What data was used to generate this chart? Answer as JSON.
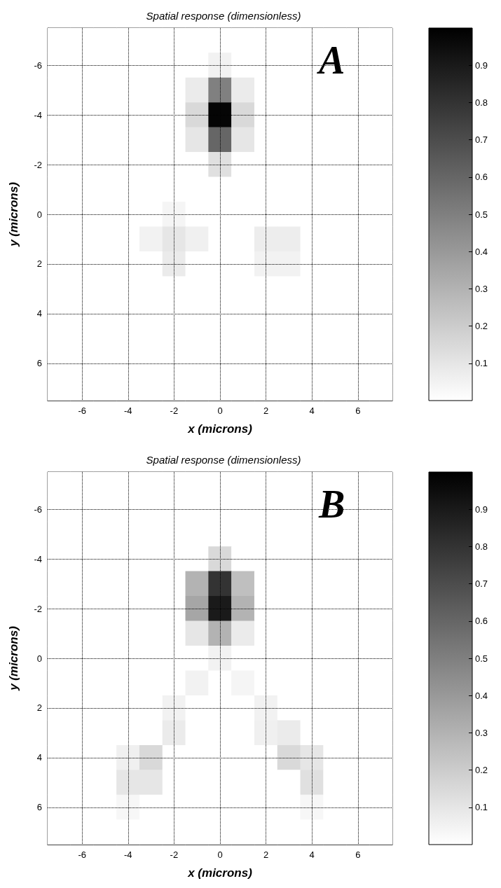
{
  "chart_data": [
    {
      "type": "heatmap",
      "title": "Spatial response (dimensionless)",
      "xlabel": "x (microns)",
      "ylabel": "y (microns)",
      "annotations": [
        "A"
      ],
      "grid": true,
      "categories": [
        null,
        "-6",
        null,
        "-4",
        null,
        "-2",
        null,
        "0",
        null,
        "2",
        null,
        "4",
        null,
        "6",
        null
      ],
      "y_categories": [
        null,
        "-6",
        null,
        "-4",
        null,
        "-2",
        null,
        "0",
        null,
        "2",
        null,
        "4",
        null,
        "6",
        null
      ],
      "clim": [
        0,
        1
      ],
      "cticks": [
        0.1,
        0.2,
        0.3,
        0.4,
        0.5,
        0.6,
        0.7,
        0.8,
        0.9
      ],
      "cells": [
        [
          0,
          0,
          0,
          0,
          0,
          0,
          0,
          0,
          0,
          0,
          0,
          0,
          0,
          0,
          0
        ],
        [
          0,
          0,
          0,
          0,
          0,
          0,
          0,
          0.05,
          0,
          0,
          0,
          0,
          0,
          0,
          0
        ],
        [
          0,
          0,
          0,
          0,
          0,
          0,
          0.08,
          0.5,
          0.08,
          0,
          0,
          0,
          0,
          0,
          0
        ],
        [
          0,
          0,
          0,
          0,
          0,
          0,
          0.15,
          0.98,
          0.15,
          0,
          0,
          0,
          0,
          0,
          0
        ],
        [
          0,
          0,
          0,
          0,
          0,
          0,
          0.1,
          0.6,
          0.1,
          0,
          0,
          0,
          0,
          0,
          0
        ],
        [
          0,
          0,
          0,
          0,
          0,
          0,
          0,
          0.12,
          0,
          0,
          0,
          0,
          0,
          0,
          0
        ],
        [
          0,
          0,
          0,
          0,
          0,
          0,
          0,
          0,
          0,
          0,
          0,
          0,
          0,
          0,
          0
        ],
        [
          0,
          0,
          0,
          0,
          0,
          0.04,
          0,
          0,
          0,
          0,
          0,
          0,
          0,
          0,
          0
        ],
        [
          0,
          0,
          0,
          0,
          0.05,
          0.1,
          0.06,
          0,
          0,
          0.07,
          0.07,
          0,
          0,
          0,
          0
        ],
        [
          0,
          0,
          0,
          0,
          0,
          0.08,
          0,
          0,
          0,
          0.05,
          0.05,
          0,
          0,
          0,
          0
        ],
        [
          0,
          0,
          0,
          0,
          0,
          0,
          0,
          0,
          0,
          0,
          0,
          0,
          0,
          0,
          0
        ],
        [
          0,
          0,
          0,
          0,
          0,
          0,
          0,
          0,
          0,
          0,
          0,
          0,
          0,
          0,
          0
        ],
        [
          0,
          0,
          0,
          0,
          0,
          0,
          0,
          0,
          0,
          0,
          0,
          0,
          0,
          0,
          0
        ],
        [
          0,
          0,
          0,
          0,
          0,
          0,
          0,
          0,
          0,
          0,
          0,
          0,
          0,
          0,
          0
        ],
        [
          0,
          0,
          0,
          0,
          0,
          0,
          0,
          0,
          0,
          0,
          0,
          0,
          0,
          0,
          0
        ]
      ]
    },
    {
      "type": "heatmap",
      "title": "Spatial response (dimensionless)",
      "xlabel": "x (microns)",
      "ylabel": "y (microns)",
      "annotations": [
        "B"
      ],
      "grid": true,
      "categories": [
        null,
        "-6",
        null,
        "-4",
        null,
        "-2",
        null,
        "0",
        null,
        "2",
        null,
        "4",
        null,
        "6",
        null
      ],
      "y_categories": [
        null,
        "-6",
        null,
        "-4",
        null,
        "-2",
        null,
        "0",
        null,
        "2",
        null,
        "4",
        null,
        "6",
        null
      ],
      "clim": [
        0,
        1
      ],
      "cticks": [
        0.1,
        0.2,
        0.3,
        0.4,
        0.5,
        0.6,
        0.7,
        0.8,
        0.9
      ],
      "cells": [
        [
          0,
          0,
          0,
          0,
          0,
          0,
          0,
          0,
          0,
          0,
          0,
          0,
          0,
          0,
          0
        ],
        [
          0,
          0,
          0,
          0,
          0,
          0,
          0,
          0,
          0,
          0,
          0,
          0,
          0,
          0,
          0
        ],
        [
          0,
          0,
          0,
          0,
          0,
          0,
          0,
          0,
          0,
          0,
          0,
          0,
          0,
          0,
          0
        ],
        [
          0,
          0,
          0,
          0,
          0,
          0,
          0,
          0.15,
          0,
          0,
          0,
          0,
          0,
          0,
          0
        ],
        [
          0,
          0,
          0,
          0,
          0,
          0,
          0.3,
          0.8,
          0.25,
          0,
          0,
          0,
          0,
          0,
          0
        ],
        [
          0,
          0,
          0,
          0,
          0,
          0,
          0.35,
          0.9,
          0.3,
          0,
          0,
          0,
          0,
          0,
          0
        ],
        [
          0,
          0,
          0,
          0,
          0,
          0,
          0.1,
          0.3,
          0.08,
          0,
          0,
          0,
          0,
          0,
          0
        ],
        [
          0,
          0,
          0,
          0,
          0,
          0,
          0,
          0.05,
          0,
          0,
          0,
          0,
          0,
          0,
          0
        ],
        [
          0,
          0,
          0,
          0,
          0,
          0,
          0.05,
          0,
          0.04,
          0,
          0,
          0,
          0,
          0,
          0
        ],
        [
          0,
          0,
          0,
          0,
          0,
          0.05,
          0,
          0,
          0,
          0.05,
          0,
          0,
          0,
          0,
          0
        ],
        [
          0,
          0,
          0,
          0,
          0,
          0.08,
          0,
          0,
          0,
          0.06,
          0.08,
          0,
          0,
          0,
          0
        ],
        [
          0,
          0,
          0,
          0.06,
          0.15,
          0,
          0,
          0,
          0,
          0,
          0.15,
          0.1,
          0,
          0,
          0
        ],
        [
          0,
          0,
          0,
          0.1,
          0.1,
          0,
          0,
          0,
          0,
          0,
          0,
          0.12,
          0,
          0,
          0
        ],
        [
          0,
          0,
          0,
          0.03,
          0,
          0,
          0,
          0,
          0,
          0,
          0,
          0.03,
          0,
          0,
          0
        ],
        [
          0,
          0,
          0,
          0,
          0,
          0,
          0,
          0,
          0,
          0,
          0,
          0,
          0,
          0,
          0
        ]
      ]
    }
  ]
}
